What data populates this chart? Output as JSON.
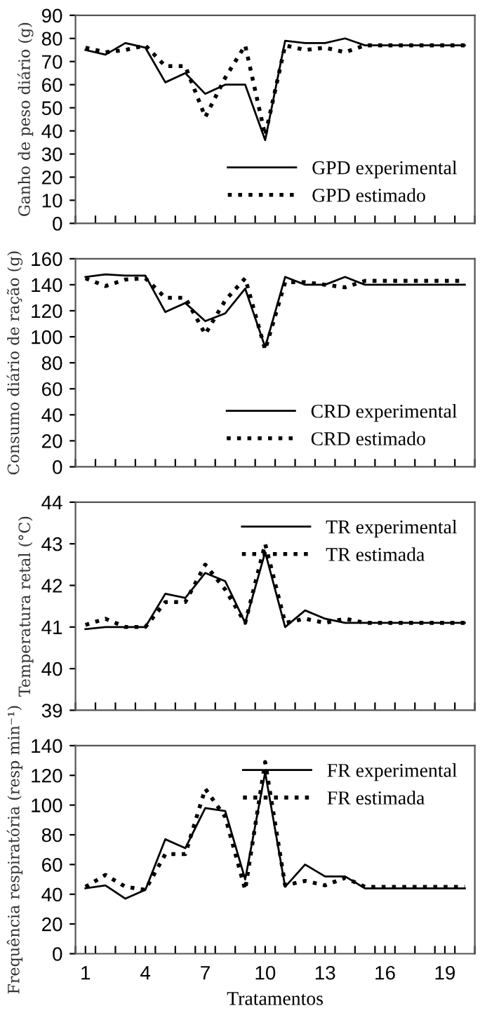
{
  "chart_data": [
    {
      "type": "line",
      "ylabel": "Ganho de peso diário (g)",
      "x": [
        1,
        2,
        3,
        4,
        5,
        6,
        7,
        8,
        9,
        10,
        11,
        12,
        13,
        14,
        15,
        16,
        17,
        18,
        19,
        20
      ],
      "xlim": [
        0.5,
        20.5
      ],
      "xticks": [
        {
          "value": 0.5,
          "label": null
        },
        {
          "value": 1.5,
          "label": null
        },
        {
          "value": 2.5,
          "label": null
        },
        {
          "value": 3.5,
          "label": null
        },
        {
          "value": 4.5,
          "label": null
        },
        {
          "value": 5.5,
          "label": null
        },
        {
          "value": 6.5,
          "label": null
        },
        {
          "value": 7.5,
          "label": null
        },
        {
          "value": 8.5,
          "label": null
        },
        {
          "value": 9.5,
          "label": null
        },
        {
          "value": 10.5,
          "label": null
        },
        {
          "value": 11.5,
          "label": null
        },
        {
          "value": 12.5,
          "label": null
        },
        {
          "value": 13.5,
          "label": null
        },
        {
          "value": 14.5,
          "label": null
        },
        {
          "value": 15.5,
          "label": null
        },
        {
          "value": 16.5,
          "label": null
        },
        {
          "value": 17.5,
          "label": null
        },
        {
          "value": 18.5,
          "label": null
        },
        {
          "value": 19.5,
          "label": null
        },
        {
          "value": 20.5,
          "label": null
        }
      ],
      "ylim": [
        0,
        90
      ],
      "yticks": [
        0,
        10,
        20,
        30,
        40,
        50,
        60,
        70,
        80,
        90
      ],
      "tick_labels": "y",
      "legend": "bottom right",
      "grid": false,
      "marker": "none",
      "series": [
        {
          "name": "GPD experimental",
          "color": "#000000",
          "line_style": "solid",
          "values": [
            75,
            73,
            78,
            76,
            61,
            65,
            56,
            60,
            60,
            36,
            79,
            78,
            78,
            80,
            77,
            77,
            77,
            77,
            77,
            77
          ]
        },
        {
          "name": "GPD estimado",
          "color": "#000000",
          "line_style": "dotted",
          "values": [
            76,
            74,
            75,
            77,
            68,
            68,
            46,
            63,
            77,
            38,
            77,
            75,
            76,
            74,
            77,
            77,
            77,
            77,
            77,
            77
          ]
        }
      ]
    },
    {
      "type": "line",
      "ylabel": "Consumo diário de ração (g)",
      "x": [
        1,
        2,
        3,
        4,
        5,
        6,
        7,
        8,
        9,
        10,
        11,
        12,
        13,
        14,
        15,
        16,
        17,
        18,
        19,
        20
      ],
      "xlim": [
        0.5,
        20.5
      ],
      "xticks": [
        {
          "value": 0.5,
          "label": null
        },
        {
          "value": 1.5,
          "label": null
        },
        {
          "value": 2.5,
          "label": null
        },
        {
          "value": 3.5,
          "label": null
        },
        {
          "value": 4.5,
          "label": null
        },
        {
          "value": 5.5,
          "label": null
        },
        {
          "value": 6.5,
          "label": null
        },
        {
          "value": 7.5,
          "label": null
        },
        {
          "value": 8.5,
          "label": null
        },
        {
          "value": 9.5,
          "label": null
        },
        {
          "value": 10.5,
          "label": null
        },
        {
          "value": 11.5,
          "label": null
        },
        {
          "value": 12.5,
          "label": null
        },
        {
          "value": 13.5,
          "label": null
        },
        {
          "value": 14.5,
          "label": null
        },
        {
          "value": 15.5,
          "label": null
        },
        {
          "value": 16.5,
          "label": null
        },
        {
          "value": 17.5,
          "label": null
        },
        {
          "value": 18.5,
          "label": null
        },
        {
          "value": 19.5,
          "label": null
        },
        {
          "value": 20.5,
          "label": null
        }
      ],
      "ylim": [
        0,
        160
      ],
      "yticks": [
        0,
        20,
        40,
        60,
        80,
        100,
        120,
        140,
        160
      ],
      "tick_labels": "y",
      "legend": "bottom right",
      "grid": false,
      "marker": "none",
      "series": [
        {
          "name": "CRD experimental",
          "color": "#000000",
          "line_style": "solid",
          "values": [
            146,
            148,
            147,
            147,
            119,
            126,
            112,
            118,
            137,
            92,
            146,
            140,
            140,
            146,
            140,
            140,
            140,
            140,
            140,
            140
          ]
        },
        {
          "name": "CRD estimado",
          "color": "#000000",
          "line_style": "dotted",
          "values": [
            145,
            139,
            144,
            145,
            130,
            130,
            102,
            128,
            145,
            90,
            142,
            142,
            140,
            138,
            143,
            143,
            143,
            143,
            143,
            143
          ]
        }
      ]
    },
    {
      "type": "line",
      "ylabel": "Temperatura retal (°C)",
      "x": [
        1,
        2,
        3,
        4,
        5,
        6,
        7,
        8,
        9,
        10,
        11,
        12,
        13,
        14,
        15,
        16,
        17,
        18,
        19,
        20
      ],
      "xlim": [
        0.5,
        20.5
      ],
      "xticks": [
        {
          "value": 0.5,
          "label": null
        },
        {
          "value": 1.5,
          "label": null
        },
        {
          "value": 2.5,
          "label": null
        },
        {
          "value": 3.5,
          "label": null
        },
        {
          "value": 4.5,
          "label": null
        },
        {
          "value": 5.5,
          "label": null
        },
        {
          "value": 6.5,
          "label": null
        },
        {
          "value": 7.5,
          "label": null
        },
        {
          "value": 8.5,
          "label": null
        },
        {
          "value": 9.5,
          "label": null
        },
        {
          "value": 10.5,
          "label": null
        },
        {
          "value": 11.5,
          "label": null
        },
        {
          "value": 12.5,
          "label": null
        },
        {
          "value": 13.5,
          "label": null
        },
        {
          "value": 14.5,
          "label": null
        },
        {
          "value": 15.5,
          "label": null
        },
        {
          "value": 16.5,
          "label": null
        },
        {
          "value": 17.5,
          "label": null
        },
        {
          "value": 18.5,
          "label": null
        },
        {
          "value": 19.5,
          "label": null
        },
        {
          "value": 20.5,
          "label": null
        }
      ],
      "ylim": [
        39,
        44
      ],
      "yticks": [
        39,
        40,
        41,
        42,
        43,
        44
      ],
      "tick_labels": "y",
      "legend": "top right",
      "grid": false,
      "marker": "none",
      "series": [
        {
          "name": "TR experimental",
          "color": "#000000",
          "line_style": "solid",
          "values": [
            40.95,
            41.0,
            41.0,
            41.0,
            41.8,
            41.7,
            42.3,
            42.1,
            41.1,
            42.8,
            41.0,
            41.4,
            41.2,
            41.1,
            41.1,
            41.1,
            41.1,
            41.1,
            41.1,
            41.1
          ]
        },
        {
          "name": "TR estimada",
          "color": "#000000",
          "line_style": "dotted",
          "values": [
            41.05,
            41.2,
            41.0,
            41.0,
            41.6,
            41.6,
            42.5,
            41.9,
            41.1,
            43.0,
            41.1,
            41.2,
            41.1,
            41.2,
            41.1,
            41.1,
            41.1,
            41.1,
            41.1,
            41.1
          ]
        }
      ]
    },
    {
      "type": "line",
      "ylabel": "Frequência respiratória (resp min⁻¹)",
      "xlabel": "Tratamentos",
      "x": [
        1,
        2,
        3,
        4,
        5,
        6,
        7,
        8,
        9,
        10,
        11,
        12,
        13,
        14,
        15,
        16,
        17,
        18,
        19,
        20
      ],
      "xlim": [
        0.5,
        20.5
      ],
      "xticks": [
        {
          "value": 0.5,
          "label": null
        },
        1,
        {
          "value": 1.5,
          "label": null
        },
        {
          "value": 2.5,
          "label": null
        },
        {
          "value": 3.5,
          "label": null
        },
        4,
        {
          "value": 4.5,
          "label": null
        },
        {
          "value": 5.5,
          "label": null
        },
        {
          "value": 6.5,
          "label": null
        },
        7,
        {
          "value": 7.5,
          "label": null
        },
        {
          "value": 8.5,
          "label": null
        },
        {
          "value": 9.5,
          "label": null
        },
        10,
        {
          "value": 10.5,
          "label": null
        },
        {
          "value": 11.5,
          "label": null
        },
        {
          "value": 12.5,
          "label": null
        },
        13,
        {
          "value": 13.5,
          "label": null
        },
        {
          "value": 14.5,
          "label": null
        },
        {
          "value": 15.5,
          "label": null
        },
        16,
        {
          "value": 16.5,
          "label": null
        },
        {
          "value": 17.5,
          "label": null
        },
        {
          "value": 18.5,
          "label": null
        },
        19,
        {
          "value": 19.5,
          "label": null
        },
        {
          "value": 20.5,
          "label": null
        }
      ],
      "ylim": [
        0,
        140
      ],
      "yticks": [
        0,
        20,
        40,
        60,
        80,
        100,
        120,
        140
      ],
      "legend": "top right",
      "grid": false,
      "marker": "none",
      "series": [
        {
          "name": "FR experimental",
          "color": "#000000",
          "line_style": "solid",
          "values": [
            44,
            46,
            37,
            43,
            77,
            71,
            98,
            96,
            50,
            122,
            45,
            60,
            52,
            52,
            44,
            44,
            44,
            44,
            44,
            44
          ]
        },
        {
          "name": "FR estimada",
          "color": "#000000",
          "line_style": "dotted",
          "values": [
            45,
            53,
            45,
            43,
            67,
            67,
            111,
            92,
            43,
            129,
            46,
            49,
            46,
            51,
            45,
            45,
            45,
            45,
            45,
            45
          ]
        }
      ]
    }
  ]
}
